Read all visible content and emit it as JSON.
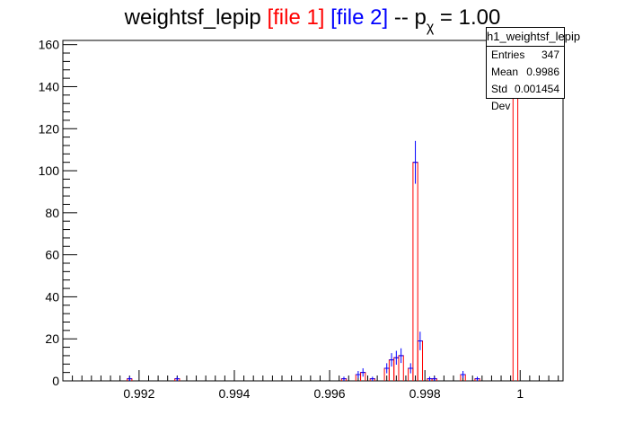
{
  "title": {
    "prefix": "weightsf_lepip ",
    "file1": "[file 1]",
    "file2": "[file 2]",
    "suffix_before": " -- p",
    "subscript": "χ",
    "suffix_after": " = 1.00",
    "file1_color": "#ff0000",
    "file2_color": "#0000ff"
  },
  "stats": {
    "name": "h1_weightsf_lepip",
    "rows": [
      {
        "label": "Entries",
        "value": "347"
      },
      {
        "label": "Mean",
        "value": "0.9986"
      },
      {
        "label": "Std Dev",
        "value": "0.001454"
      }
    ]
  },
  "chart_data": {
    "type": "bar",
    "title": "weightsf_lepip [file 1] [file 2] -- pχ = 1.00",
    "xlabel": "",
    "ylabel": "",
    "xlim": [
      0.9904,
      1.0009
    ],
    "ylim": [
      0,
      162
    ],
    "x_ticks": [
      "0.992",
      "0.994",
      "0.996",
      "0.998",
      "1"
    ],
    "y_ticks": [
      "0",
      "20",
      "40",
      "60",
      "80",
      "100",
      "120",
      "140",
      "160"
    ],
    "bin_width": 0.0001,
    "series": [
      {
        "name": "file 1",
        "color": "#ff0000",
        "style": "histogram",
        "bins": [
          {
            "x": 0.9991,
            "y": 1
          },
          {
            "x": 0.9918,
            "y": 1
          },
          {
            "x": 0.9928,
            "y": 1
          },
          {
            "x": 0.9963,
            "y": 1
          },
          {
            "x": 0.9966,
            "y": 3
          },
          {
            "x": 0.9967,
            "y": 4
          },
          {
            "x": 0.9969,
            "y": 1
          },
          {
            "x": 0.9972,
            "y": 6
          },
          {
            "x": 0.9973,
            "y": 10
          },
          {
            "x": 0.9974,
            "y": 11
          },
          {
            "x": 0.9975,
            "y": 12
          },
          {
            "x": 0.9977,
            "y": 6
          },
          {
            "x": 0.9978,
            "y": 104
          },
          {
            "x": 0.9979,
            "y": 19
          },
          {
            "x": 0.9981,
            "y": 1
          },
          {
            "x": 0.9982,
            "y": 1
          },
          {
            "x": 0.9988,
            "y": 3
          },
          {
            "x": 0.9999,
            "y": 157
          }
        ]
      },
      {
        "name": "file 2",
        "color": "#0000ff",
        "style": "error-bars",
        "points": [
          {
            "x": 0.9991,
            "y": 1,
            "err": 1
          },
          {
            "x": 0.9918,
            "y": 1,
            "err": 1
          },
          {
            "x": 0.9928,
            "y": 1,
            "err": 1
          },
          {
            "x": 0.9963,
            "y": 1,
            "err": 1
          },
          {
            "x": 0.9966,
            "y": 3,
            "err": 1.7
          },
          {
            "x": 0.9967,
            "y": 4,
            "err": 2
          },
          {
            "x": 0.9969,
            "y": 1,
            "err": 1
          },
          {
            "x": 0.9972,
            "y": 6,
            "err": 2.4
          },
          {
            "x": 0.9973,
            "y": 10,
            "err": 3.2
          },
          {
            "x": 0.9974,
            "y": 11,
            "err": 3.3
          },
          {
            "x": 0.9975,
            "y": 12,
            "err": 3.5
          },
          {
            "x": 0.9977,
            "y": 6,
            "err": 2.4
          },
          {
            "x": 0.9978,
            "y": 104,
            "err": 10.2
          },
          {
            "x": 0.9979,
            "y": 19,
            "err": 4.4
          },
          {
            "x": 0.9981,
            "y": 1,
            "err": 1
          },
          {
            "x": 0.9982,
            "y": 1,
            "err": 1
          },
          {
            "x": 0.9988,
            "y": 3,
            "err": 1.7
          },
          {
            "x": 0.9999,
            "y": 157,
            "err": 12.5
          }
        ]
      }
    ]
  }
}
